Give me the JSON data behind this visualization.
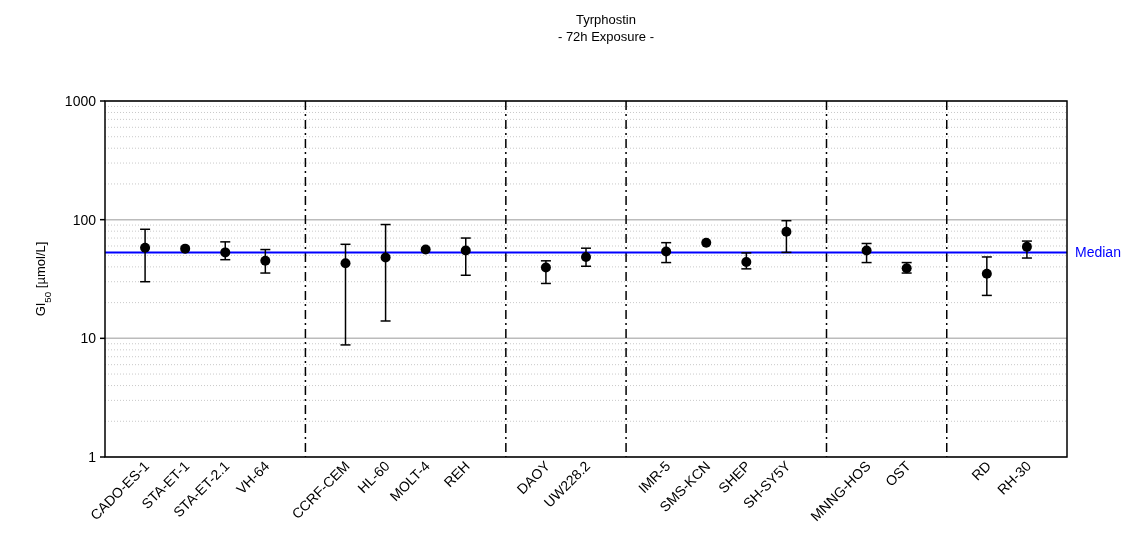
{
  "chart_data": {
    "type": "scatter",
    "title": "Tyrphostin",
    "subtitle": "- 72h Exposure -",
    "ylabel": "GI$_{50}$ [µmol/L]",
    "categories": [
      "CADO-ES-1",
      "STA-ET-1",
      "STA-ET-2.1",
      "VH-64",
      null,
      "CCRF-CEM",
      "HL-60",
      "MOLT-4",
      "REH",
      null,
      "DAOY",
      "UW228.2",
      null,
      "IMR-5",
      "SMS-KCN",
      "SHEP",
      "SH-SY5Y",
      null,
      "MNNG-HOS",
      "OST",
      null,
      "RD",
      "RH-30"
    ],
    "series": [
      {
        "color": "#000000",
        "values": [
          58,
          57,
          53,
          45,
          null,
          43,
          48,
          56,
          55,
          null,
          39.5,
          48.5,
          null,
          54,
          64,
          44,
          79,
          null,
          55,
          39,
          null,
          35,
          59
        ],
        "errors": [
          [
            30,
            83
          ],
          null,
          [
            46,
            65
          ],
          [
            35.5,
            56
          ],
          null,
          [
            8.8,
            62
          ],
          [
            14,
            91
          ],
          null,
          [
            34,
            70
          ],
          null,
          [
            29,
            45
          ],
          [
            40.5,
            57.5
          ],
          null,
          [
            43.5,
            64
          ],
          null,
          [
            38.5,
            52.5
          ],
          [
            53,
            98
          ],
          null,
          [
            43.5,
            63
          ],
          [
            35.5,
            43.5
          ],
          null,
          [
            23,
            48.5
          ],
          [
            47.5,
            66
          ]
        ]
      }
    ],
    "ylim": [
      1,
      1000
    ],
    "yticks": [
      1,
      10,
      100,
      1000
    ],
    "log": true,
    "grid": true,
    "marker": "circle",
    "ref_lines": [
      {
        "axis": "y",
        "value": 53,
        "label": "Median",
        "color": "#0000ff",
        "line_style": "solid"
      }
    ]
  }
}
